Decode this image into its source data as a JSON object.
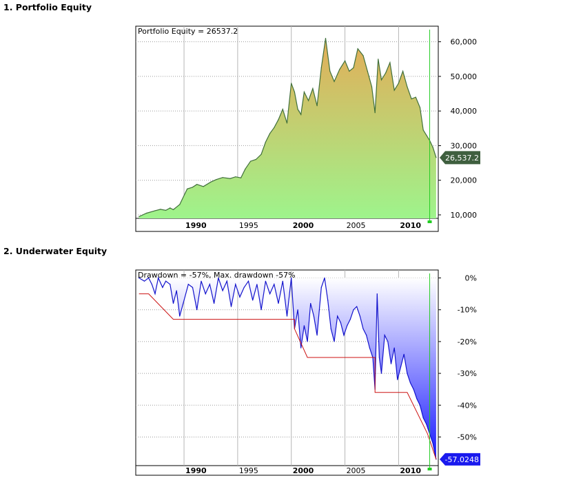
{
  "sections": [
    {
      "title": "1. Portfolio Equity"
    },
    {
      "title": "2. Underwater Equity"
    }
  ],
  "chart_data": [
    {
      "type": "area",
      "title": "Portfolio Equity = 26537.2",
      "xlabel": "",
      "ylabel": "",
      "x_ticks": [
        {
          "label": "1990",
          "year": 1990,
          "bold": true
        },
        {
          "label": "1995",
          "year": 1995,
          "bold": false
        },
        {
          "label": "2000",
          "year": 2000,
          "bold": true
        },
        {
          "label": "2005",
          "year": 2005,
          "bold": false
        },
        {
          "label": "2010",
          "year": 2010,
          "bold": true
        }
      ],
      "y_ticks": [
        {
          "label": "10,000",
          "value": 10000
        },
        {
          "label": "20,000",
          "value": 20000
        },
        {
          "label": "30,000",
          "value": 30000
        },
        {
          "label": "40,000",
          "value": 40000
        },
        {
          "label": "50,000",
          "value": 50000
        },
        {
          "label": "60,000",
          "value": 60000
        }
      ],
      "xlim": [
        1985.5,
        2013.7
      ],
      "ylim": [
        9000,
        64500
      ],
      "last_value_label": "26,537.2",
      "series": [
        {
          "name": "Portfolio Equity",
          "color": "#3f6f3a",
          "x": [
            1985.8,
            1986.5,
            1987.3,
            1987.8,
            1988.3,
            1988.7,
            1989.0,
            1989.6,
            1990.3,
            1990.8,
            1991.2,
            1991.8,
            1992.5,
            1993.0,
            1993.6,
            1994.3,
            1994.8,
            1995.3,
            1995.7,
            1996.2,
            1996.7,
            1997.2,
            1997.6,
            1998.0,
            1998.4,
            1998.8,
            1999.2,
            1999.6,
            2000.0,
            2000.3,
            2000.6,
            2000.9,
            2001.2,
            2001.6,
            2002.0,
            2002.4,
            2002.8,
            2003.2,
            2003.6,
            2004.0,
            2004.5,
            2005.0,
            2005.4,
            2005.8,
            2006.2,
            2006.7,
            2007.1,
            2007.5,
            2007.8,
            2008.1,
            2008.4,
            2008.8,
            2009.2,
            2009.6,
            2010.0,
            2010.4,
            2010.8,
            2011.2,
            2011.6,
            2012.0,
            2012.3,
            2012.6,
            2012.9,
            2013.2,
            2013.5
          ],
          "values": [
            9500,
            10500,
            11200,
            11600,
            11300,
            12000,
            11500,
            13000,
            17500,
            18000,
            18800,
            18200,
            19500,
            20200,
            20800,
            20500,
            21000,
            20700,
            23200,
            25500,
            26000,
            27500,
            31000,
            33500,
            35200,
            37500,
            40500,
            36500,
            48000,
            45500,
            40500,
            39000,
            45500,
            43000,
            46500,
            41500,
            52500,
            61000,
            51500,
            48500,
            52000,
            54500,
            51500,
            52500,
            58000,
            56000,
            51500,
            47000,
            39500,
            55000,
            49000,
            51000,
            54000,
            46000,
            48000,
            51500,
            47000,
            43500,
            44000,
            41000,
            34500,
            33000,
            31500,
            29500,
            26537.2
          ]
        }
      ],
      "gradient_colors": {
        "top": "#e3ad58",
        "bottom": "#9ef48c"
      },
      "marker_year": 2012.9
    },
    {
      "type": "area",
      "title": "Drawdown = -57%, Max. drawdown -57%",
      "xlabel": "",
      "ylabel": "",
      "x_ticks": [
        {
          "label": "1990",
          "year": 1990,
          "bold": true
        },
        {
          "label": "1995",
          "year": 1995,
          "bold": false
        },
        {
          "label": "2000",
          "year": 2000,
          "bold": true
        },
        {
          "label": "2005",
          "year": 2005,
          "bold": false
        },
        {
          "label": "2010",
          "year": 2010,
          "bold": true
        }
      ],
      "y_ticks": [
        {
          "label": "0%",
          "value": 0
        },
        {
          "label": "-10%",
          "value": -10
        },
        {
          "label": "-20%",
          "value": -20
        },
        {
          "label": "-30%",
          "value": -30
        },
        {
          "label": "-40%",
          "value": -40
        },
        {
          "label": "-50%",
          "value": -50
        }
      ],
      "xlim": [
        1985.5,
        2013.7
      ],
      "ylim": [
        -59,
        2.5
      ],
      "last_value_label": "-57.0248",
      "series": [
        {
          "name": "Drawdown",
          "color": "#1111cc",
          "x": [
            1985.8,
            1986.3,
            1986.7,
            1987.0,
            1987.3,
            1987.6,
            1988.0,
            1988.3,
            1988.7,
            1989.0,
            1989.3,
            1989.6,
            1990.0,
            1990.4,
            1990.8,
            1991.2,
            1991.6,
            1992.0,
            1992.4,
            1992.8,
            1993.2,
            1993.6,
            1994.0,
            1994.4,
            1994.8,
            1995.2,
            1995.6,
            1996.0,
            1996.4,
            1996.8,
            1997.2,
            1997.6,
            1998.0,
            1998.4,
            1998.8,
            1999.2,
            1999.6,
            2000.0,
            2000.3,
            2000.6,
            2000.9,
            2001.2,
            2001.5,
            2001.8,
            2002.1,
            2002.4,
            2002.8,
            2003.1,
            2003.4,
            2003.7,
            2004.0,
            2004.3,
            2004.6,
            2004.9,
            2005.2,
            2005.5,
            2005.8,
            2006.1,
            2006.4,
            2006.7,
            2007.0,
            2007.3,
            2007.6,
            2007.8,
            2008.0,
            2008.2,
            2008.4,
            2008.7,
            2009.0,
            2009.3,
            2009.6,
            2009.9,
            2010.2,
            2010.5,
            2010.8,
            2011.1,
            2011.4,
            2011.7,
            2012.0,
            2012.3,
            2012.6,
            2012.9,
            2013.2,
            2013.5
          ],
          "values": [
            0,
            -1,
            0,
            -2,
            -5,
            0,
            -3,
            -1,
            -2,
            -8,
            -4,
            -12,
            -7,
            -2,
            -3,
            -10,
            -1,
            -5,
            -2,
            -8,
            0,
            -4,
            -1,
            -9,
            -2,
            -6,
            -3,
            -1,
            -7,
            -2,
            -10,
            -1,
            -5,
            -2,
            -8,
            -1,
            -12,
            0,
            -16,
            -10,
            -22,
            -15,
            -20,
            -8,
            -12,
            -18,
            -3,
            0,
            -7,
            -16,
            -20,
            -12,
            -14,
            -18,
            -15,
            -13,
            -10,
            -9,
            -12,
            -16,
            -18,
            -22,
            -25,
            -35,
            -5,
            -25,
            -30,
            -18,
            -20,
            -27,
            -22,
            -32,
            -28,
            -24,
            -30,
            -33,
            -35,
            -38,
            -40,
            -44,
            -46,
            -49,
            -52,
            -57.02
          ]
        },
        {
          "name": "Max drawdown",
          "color": "#cc1111",
          "x": [
            1985.8,
            1986.7,
            1986.7,
            1989.0,
            1989.0,
            2000.3,
            2000.3,
            2001.5,
            2001.5,
            2007.8,
            2007.8,
            2010.8,
            2010.8,
            2012.7,
            2012.7,
            2013.5
          ],
          "values": [
            -5,
            -5,
            -5,
            -13,
            -13,
            -13,
            -16,
            -25,
            -25,
            -25,
            -36,
            -36,
            -36,
            -49,
            -49,
            -57
          ]
        }
      ],
      "gradient_colors": {
        "top": "#ffffff",
        "bottom": "#1a1aff"
      },
      "marker_year": 2012.9
    }
  ]
}
